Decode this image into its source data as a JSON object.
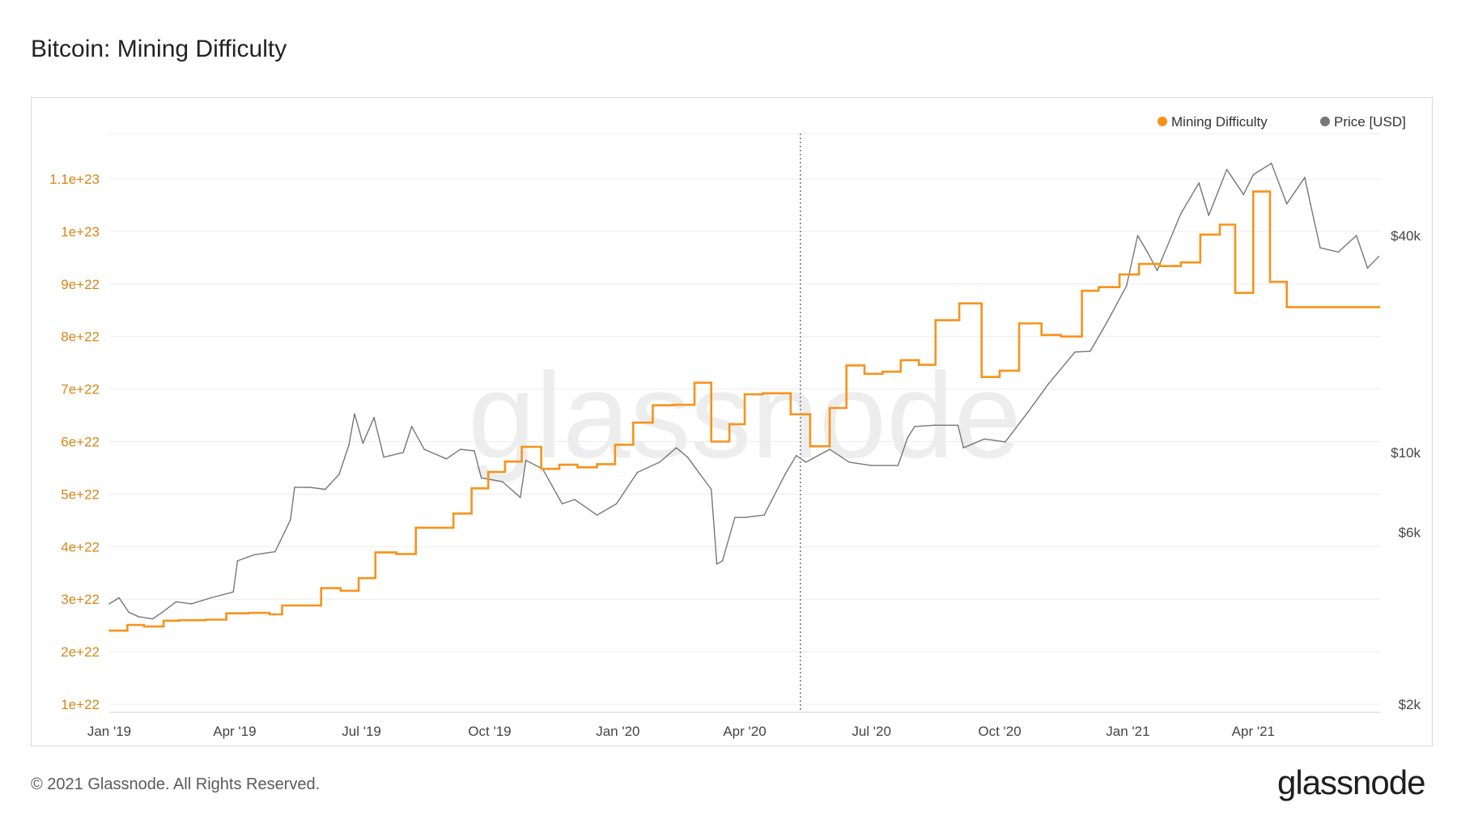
{
  "title": "Bitcoin: Mining Difficulty",
  "footer": "© 2021 Glassnode. All Rights Reserved.",
  "logo": "glassnode",
  "watermark": "glassnode",
  "colors": {
    "difficulty": "#f7931a",
    "price": "#777777",
    "grid": "#ececec",
    "left_axis": "#d98416",
    "right_axis": "#444444"
  },
  "chart_data": {
    "type": "line",
    "title": "Bitcoin: Mining Difficulty",
    "legend": [
      "Mining Difficulty",
      "Price [USD]"
    ],
    "legend_position": "top-right",
    "grid": true,
    "x_ticks": [
      "Jan '19",
      "Apr '19",
      "Jul '19",
      "Oct '19",
      "Jan '20",
      "Apr '20",
      "Jul '20",
      "Oct '20",
      "Jan '21",
      "Apr '21"
    ],
    "y_left_ticks": [
      "1e+22",
      "2e+22",
      "3e+22",
      "4e+22",
      "5e+22",
      "6e+22",
      "7e+22",
      "8e+22",
      "9e+22",
      "1e+23",
      "1.1e+23"
    ],
    "y_right_ticks": [
      "$2k",
      "$6k",
      "$10k",
      "$40k"
    ],
    "y_left_range": [
      1e+22,
      1.15e+23
    ],
    "y_right_scale": "log",
    "marker_date": "2020-05-11",
    "series": [
      {
        "name": "Mining Difficulty",
        "axis": "left",
        "step": true,
        "points": [
          [
            "2019-01-01",
            2.4e+22
          ],
          [
            "2019-01-14",
            2.51e+22
          ],
          [
            "2019-01-26",
            2.48e+22
          ],
          [
            "2019-02-09",
            2.59e+22
          ],
          [
            "2019-02-20",
            2.6e+22
          ],
          [
            "2019-03-11",
            2.61e+22
          ],
          [
            "2019-03-26",
            2.73e+22
          ],
          [
            "2019-04-11",
            2.74e+22
          ],
          [
            "2019-04-26",
            2.71e+22
          ],
          [
            "2019-05-05",
            2.88e+22
          ],
          [
            "2019-05-20",
            2.88e+22
          ],
          [
            "2019-06-02",
            3.21e+22
          ],
          [
            "2019-06-16",
            3.16e+22
          ],
          [
            "2019-06-29",
            3.4e+22
          ],
          [
            "2019-07-11",
            3.89e+22
          ],
          [
            "2019-07-26",
            3.86e+22
          ],
          [
            "2019-08-09",
            4.36e+22
          ],
          [
            "2019-08-22",
            4.36e+22
          ],
          [
            "2019-09-05",
            4.63e+22
          ],
          [
            "2019-09-18",
            5.11e+22
          ],
          [
            "2019-09-30",
            5.42e+22
          ],
          [
            "2019-10-12",
            5.62e+22
          ],
          [
            "2019-10-24",
            5.9e+22
          ],
          [
            "2019-11-07",
            5.48e+22
          ],
          [
            "2019-11-20",
            5.56e+22
          ],
          [
            "2019-12-03",
            5.51e+22
          ],
          [
            "2019-12-17",
            5.57e+22
          ],
          [
            "2019-12-30",
            5.94e+22
          ],
          [
            "2020-01-12",
            6.36e+22
          ],
          [
            "2020-01-26",
            6.69e+22
          ],
          [
            "2020-02-10",
            6.7e+22
          ],
          [
            "2020-02-25",
            7.12e+22
          ],
          [
            "2020-03-08",
            6e+22
          ],
          [
            "2020-03-21",
            6.33e+22
          ],
          [
            "2020-04-01",
            6.9e+22
          ],
          [
            "2020-04-14",
            6.92e+22
          ],
          [
            "2020-05-04",
            6.52e+22
          ],
          [
            "2020-05-18",
            5.91e+22
          ],
          [
            "2020-06-01",
            6.64e+22
          ],
          [
            "2020-06-13",
            7.45e+22
          ],
          [
            "2020-06-26",
            7.29e+22
          ],
          [
            "2020-07-09",
            7.33e+22
          ],
          [
            "2020-07-22",
            7.55e+22
          ],
          [
            "2020-08-04",
            7.46e+22
          ],
          [
            "2020-08-16",
            8.31e+22
          ],
          [
            "2020-09-02",
            8.63e+22
          ],
          [
            "2020-09-18",
            7.23e+22
          ],
          [
            "2020-10-01",
            7.35e+22
          ],
          [
            "2020-10-15",
            8.25e+22
          ],
          [
            "2020-10-31",
            8.03e+22
          ],
          [
            "2020-11-14",
            8e+22
          ],
          [
            "2020-11-29",
            8.87e+22
          ],
          [
            "2020-12-11",
            8.94e+22
          ],
          [
            "2020-12-26",
            9.18e+22
          ],
          [
            "2021-01-09",
            9.38e+22
          ],
          [
            "2021-01-24",
            9.34e+22
          ],
          [
            "2021-02-08",
            9.41e+22
          ],
          [
            "2021-02-22",
            9.94e+22
          ],
          [
            "2021-03-08",
            1.013e+23
          ],
          [
            "2021-03-19",
            8.83e+22
          ],
          [
            "2021-04-01",
            1.076e+23
          ],
          [
            "2021-04-13",
            9.04e+22
          ],
          [
            "2021-04-25",
            8.56e+22
          ],
          [
            "2021-05-06",
            8.56e+22
          ]
        ]
      },
      {
        "name": "Price [USD]",
        "axis": "right",
        "step": false,
        "points": [
          [
            "2019-01-01",
            3800
          ],
          [
            "2019-01-08",
            3950
          ],
          [
            "2019-01-15",
            3600
          ],
          [
            "2019-01-22",
            3500
          ],
          [
            "2019-02-01",
            3450
          ],
          [
            "2019-02-08",
            3600
          ],
          [
            "2019-02-18",
            3850
          ],
          [
            "2019-03-01",
            3800
          ],
          [
            "2019-03-15",
            3950
          ],
          [
            "2019-03-31",
            4100
          ],
          [
            "2019-04-03",
            5000
          ],
          [
            "2019-04-15",
            5200
          ],
          [
            "2019-04-30",
            5300
          ],
          [
            "2019-05-11",
            6500
          ],
          [
            "2019-05-14",
            8000
          ],
          [
            "2019-05-25",
            8000
          ],
          [
            "2019-06-05",
            7900
          ],
          [
            "2019-06-15",
            8700
          ],
          [
            "2019-06-22",
            10500
          ],
          [
            "2019-06-26",
            12800
          ],
          [
            "2019-07-02",
            10600
          ],
          [
            "2019-07-10",
            12500
          ],
          [
            "2019-07-17",
            9700
          ],
          [
            "2019-07-31",
            10000
          ],
          [
            "2019-08-06",
            11800
          ],
          [
            "2019-08-15",
            10200
          ],
          [
            "2019-08-31",
            9600
          ],
          [
            "2019-09-10",
            10200
          ],
          [
            "2019-09-20",
            10100
          ],
          [
            "2019-09-25",
            8500
          ],
          [
            "2019-10-10",
            8300
          ],
          [
            "2019-10-23",
            7500
          ],
          [
            "2019-10-27",
            9500
          ],
          [
            "2019-11-08",
            9000
          ],
          [
            "2019-11-22",
            7200
          ],
          [
            "2019-12-01",
            7400
          ],
          [
            "2019-12-17",
            6700
          ],
          [
            "2019-12-31",
            7200
          ],
          [
            "2020-01-15",
            8800
          ],
          [
            "2020-01-31",
            9400
          ],
          [
            "2020-02-12",
            10300
          ],
          [
            "2020-02-20",
            9700
          ],
          [
            "2020-03-08",
            7900
          ],
          [
            "2020-03-12",
            4900
          ],
          [
            "2020-03-16",
            5000
          ],
          [
            "2020-03-25",
            6600
          ],
          [
            "2020-04-01",
            6600
          ],
          [
            "2020-04-15",
            6700
          ],
          [
            "2020-04-30",
            8700
          ],
          [
            "2020-05-08",
            9800
          ],
          [
            "2020-05-15",
            9400
          ],
          [
            "2020-06-01",
            10200
          ],
          [
            "2020-06-15",
            9400
          ],
          [
            "2020-07-01",
            9200
          ],
          [
            "2020-07-20",
            9200
          ],
          [
            "2020-07-27",
            11000
          ],
          [
            "2020-08-01",
            11800
          ],
          [
            "2020-08-15",
            11900
          ],
          [
            "2020-09-01",
            11900
          ],
          [
            "2020-09-05",
            10300
          ],
          [
            "2020-09-20",
            10900
          ],
          [
            "2020-10-05",
            10700
          ],
          [
            "2020-10-21",
            12900
          ],
          [
            "2020-11-05",
            15500
          ],
          [
            "2020-11-24",
            19000
          ],
          [
            "2020-12-05",
            19100
          ],
          [
            "2020-12-17",
            23000
          ],
          [
            "2020-12-31",
            29000
          ],
          [
            "2021-01-08",
            40000
          ],
          [
            "2021-01-15",
            36000
          ],
          [
            "2021-01-22",
            32000
          ],
          [
            "2021-02-08",
            46000
          ],
          [
            "2021-02-21",
            56000
          ],
          [
            "2021-02-28",
            45500
          ],
          [
            "2021-03-13",
            61000
          ],
          [
            "2021-03-25",
            52000
          ],
          [
            "2021-04-01",
            59000
          ],
          [
            "2021-04-14",
            63500
          ],
          [
            "2021-04-25",
            49000
          ],
          [
            "2021-05-08",
            58000
          ],
          [
            "2021-05-12",
            49000
          ],
          [
            "2021-05-19",
            37000
          ],
          [
            "2021-06-01",
            36000
          ],
          [
            "2021-06-14",
            40000
          ],
          [
            "2021-06-22",
            32500
          ],
          [
            "2021-06-30",
            35000
          ]
        ]
      }
    ]
  }
}
